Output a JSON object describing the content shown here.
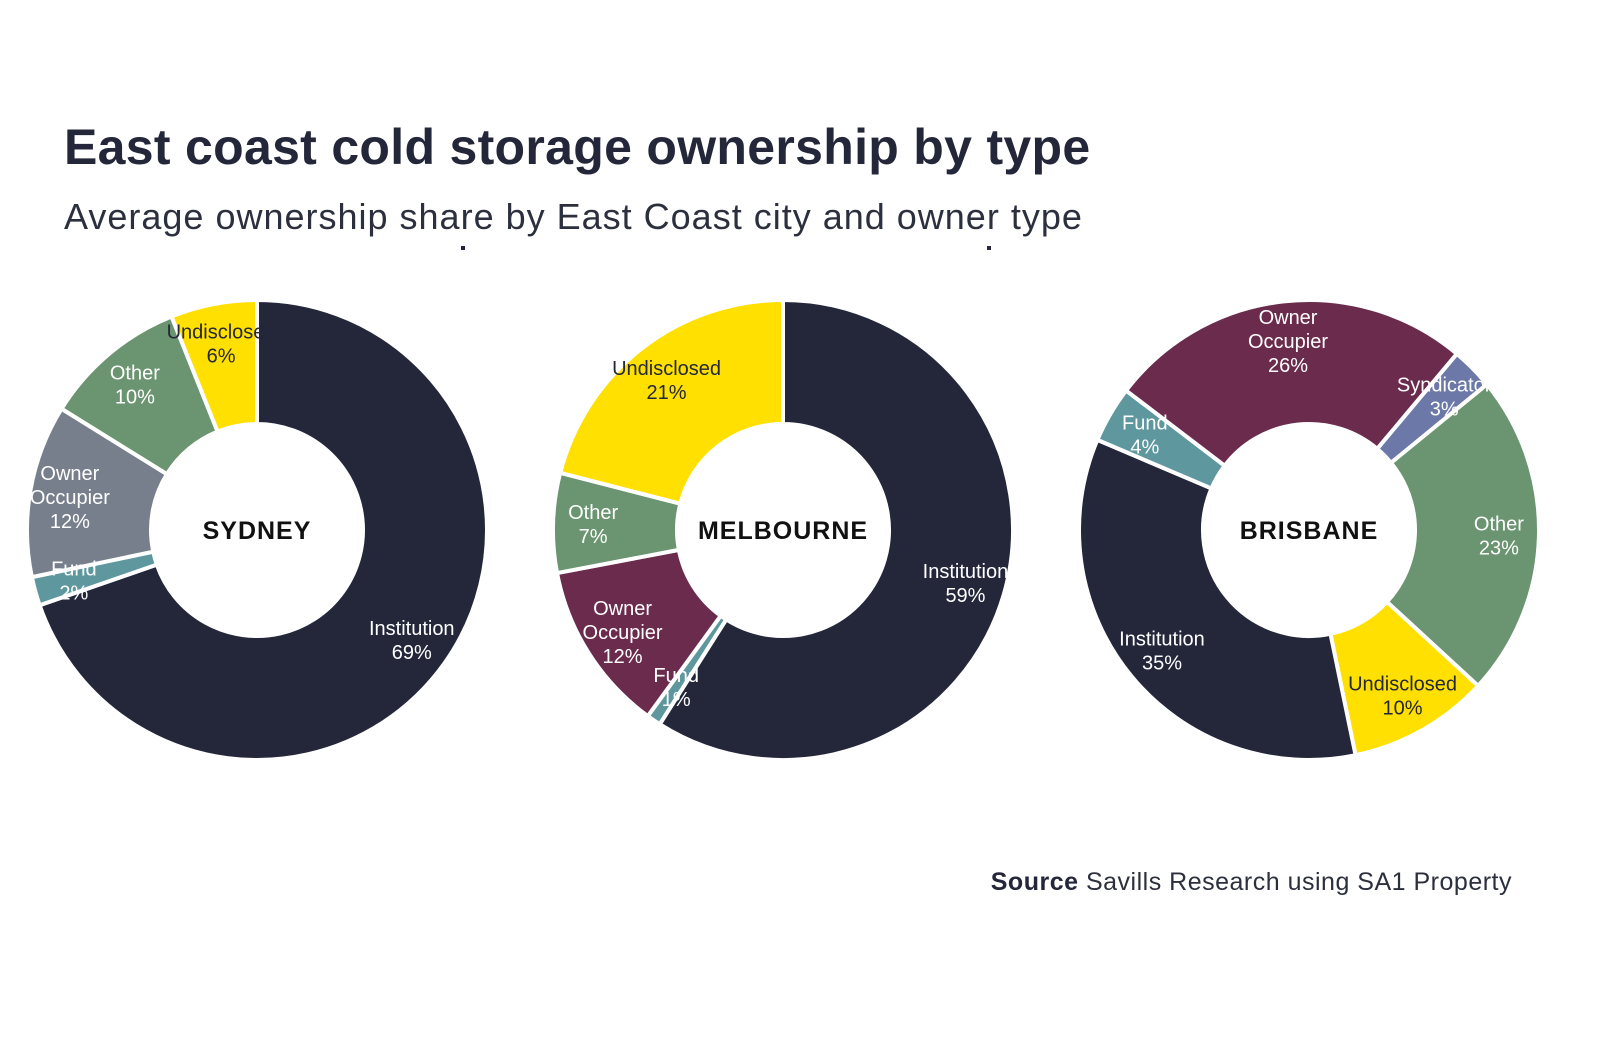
{
  "header": {
    "title": "East coast cold storage ownership by type",
    "subtitle": "Average ownership share by East Coast city and owner type"
  },
  "footer": {
    "source_label": "Source",
    "source_text": "Savills Research using SA1 Property"
  },
  "colors": {
    "Institution": "#24273a",
    "Fund": "#5e979e",
    "Owner Occupier (Sydney)": "#787f8c",
    "Owner Occupier": "#6b2b4c",
    "Other": "#6b9471",
    "Undisclosed": "#ffe000",
    "Syndicator": "#6c78a8",
    "separator": "#ffffff"
  },
  "chart_data": [
    {
      "type": "pie",
      "center_label": "SYDNEY",
      "slices": [
        {
          "label": "Institution",
          "value": 69,
          "value_label": "69%",
          "color": "#24273a",
          "text_color": "#ffffff"
        },
        {
          "label": "Fund",
          "value": 2,
          "value_label": "2%",
          "color": "#5e979e",
          "text_color": "#ffffff"
        },
        {
          "label": "Owner Occupier",
          "value": 12,
          "value_label": "12%",
          "color": "#787f8c",
          "text_color": "#ffffff"
        },
        {
          "label": "Other",
          "value": 10,
          "value_label": "10%",
          "color": "#6b9471",
          "text_color": "#ffffff"
        },
        {
          "label": "Undisclosed",
          "value": 6,
          "value_label": "6%",
          "color": "#ffe000",
          "text_color": "#24273a"
        }
      ]
    },
    {
      "type": "pie",
      "center_label": "MELBOURNE",
      "slices": [
        {
          "label": "Institution",
          "value": 59,
          "value_label": "59%",
          "color": "#24273a",
          "text_color": "#ffffff"
        },
        {
          "label": "Fund",
          "value": 1,
          "value_label": "1%",
          "color": "#5e979e",
          "text_color": "#ffffff"
        },
        {
          "label": "Owner Occupier",
          "value": 12,
          "value_label": "12%",
          "color": "#6b2b4c",
          "text_color": "#ffffff"
        },
        {
          "label": "Other",
          "value": 7,
          "value_label": "7%",
          "color": "#6b9471",
          "text_color": "#ffffff"
        },
        {
          "label": "Undisclosed",
          "value": 21,
          "value_label": "21%",
          "color": "#ffe000",
          "text_color": "#24273a"
        }
      ]
    },
    {
      "type": "pie",
      "center_label": "BRISBANE",
      "slices": [
        {
          "label": "Syndicator",
          "value": 3,
          "value_label": "3%",
          "color": "#6c78a8",
          "text_color": "#ffffff"
        },
        {
          "label": "Other",
          "value": 23,
          "value_label": "23%",
          "color": "#6b9471",
          "text_color": "#ffffff"
        },
        {
          "label": "Undisclosed",
          "value": 10,
          "value_label": "10%",
          "color": "#ffe000",
          "text_color": "#24273a"
        },
        {
          "label": "Institution",
          "value": 35,
          "value_label": "35%",
          "color": "#24273a",
          "text_color": "#ffffff"
        },
        {
          "label": "Fund",
          "value": 4,
          "value_label": "4%",
          "color": "#5e979e",
          "text_color": "#ffffff"
        },
        {
          "label": "Owner Occupier",
          "value": 26,
          "value_label": "26%",
          "color": "#6b2b4c",
          "text_color": "#ffffff"
        }
      ]
    }
  ]
}
